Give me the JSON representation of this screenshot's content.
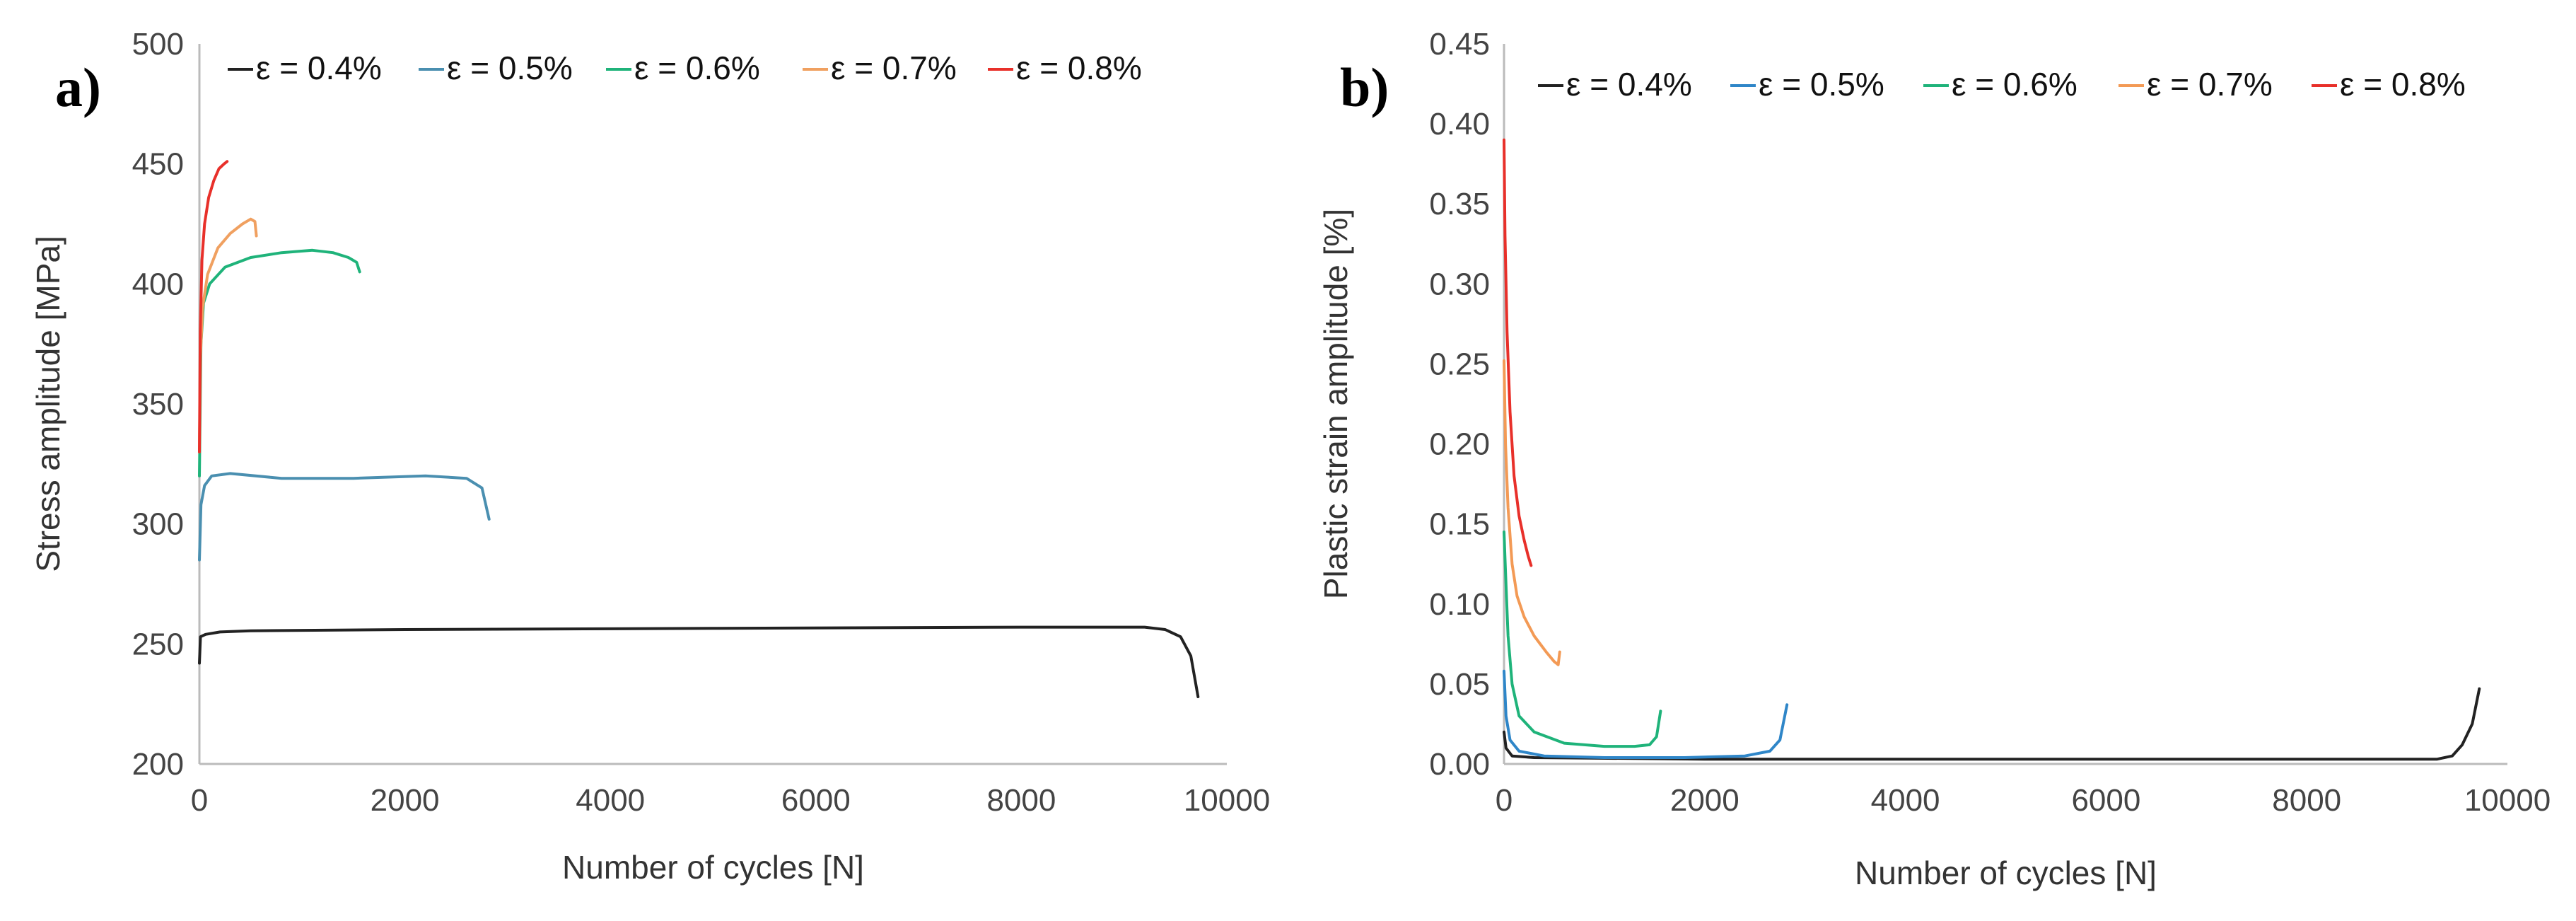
{
  "chart_data": [
    {
      "panel": "a)",
      "type": "line",
      "title": "",
      "xlabel": "Number of cycles [N]",
      "ylabel": "Stress amplitude [MPa]",
      "xlim": [
        0,
        10000
      ],
      "ylim": [
        200,
        500
      ],
      "xticks": [
        0,
        2000,
        4000,
        6000,
        8000,
        10000
      ],
      "yticks": [
        200,
        250,
        300,
        350,
        400,
        450,
        500
      ],
      "legend_position": "top",
      "series": [
        {
          "name": "ε = 0.4%",
          "color": "#222222",
          "points": [
            [
              0,
              242
            ],
            [
              10,
              253
            ],
            [
              60,
              254
            ],
            [
              200,
              255
            ],
            [
              500,
              255.5
            ],
            [
              2000,
              256
            ],
            [
              5000,
              256.5
            ],
            [
              8000,
              257
            ],
            [
              9200,
              257
            ],
            [
              9400,
              256
            ],
            [
              9550,
              253
            ],
            [
              9650,
              245
            ],
            [
              9720,
              228
            ]
          ]
        },
        {
          "name": "ε = 0.5%",
          "color": "#4a8fb0",
          "points": [
            [
              0,
              285
            ],
            [
              15,
              308
            ],
            [
              50,
              316
            ],
            [
              120,
              320
            ],
            [
              300,
              321
            ],
            [
              800,
              319
            ],
            [
              1500,
              319
            ],
            [
              2200,
              320
            ],
            [
              2600,
              319
            ],
            [
              2750,
              315
            ],
            [
              2820,
              302
            ]
          ]
        },
        {
          "name": "ε = 0.6%",
          "color": "#1fb37a",
          "points": [
            [
              0,
              320
            ],
            [
              15,
              375
            ],
            [
              40,
              392
            ],
            [
              100,
              400
            ],
            [
              250,
              407
            ],
            [
              500,
              411
            ],
            [
              800,
              413
            ],
            [
              1100,
              414
            ],
            [
              1300,
              413
            ],
            [
              1450,
              411
            ],
            [
              1530,
              409
            ],
            [
              1560,
              405
            ]
          ]
        },
        {
          "name": "ε = 0.7%",
          "color": "#f0a060",
          "points": [
            [
              0,
              330
            ],
            [
              10,
              370
            ],
            [
              30,
              390
            ],
            [
              80,
              404
            ],
            [
              180,
              415
            ],
            [
              300,
              421
            ],
            [
              420,
              425
            ],
            [
              500,
              427
            ],
            [
              540,
              426
            ],
            [
              555,
              420
            ]
          ]
        },
        {
          "name": "ε = 0.8%",
          "color": "#e8302a",
          "points": [
            [
              0,
              330
            ],
            [
              8,
              380
            ],
            [
              25,
              410
            ],
            [
              50,
              425
            ],
            [
              90,
              436
            ],
            [
              140,
              443
            ],
            [
              190,
              448
            ],
            [
              240,
              450
            ],
            [
              270,
              451
            ]
          ]
        }
      ]
    },
    {
      "panel": "b)",
      "type": "line",
      "title": "",
      "xlabel": "Number of cycles [N]",
      "ylabel": "Plastic strain amplitude [%]",
      "xlim": [
        0,
        10000
      ],
      "ylim": [
        0,
        0.45
      ],
      "xticks": [
        0,
        2000,
        4000,
        6000,
        8000,
        10000
      ],
      "yticks": [
        0.0,
        0.05,
        0.1,
        0.15,
        0.2,
        0.25,
        0.3,
        0.35,
        0.4,
        0.45
      ],
      "legend_position": "top",
      "series": [
        {
          "name": "ε = 0.4%",
          "color": "#222222",
          "points": [
            [
              0,
              0.02
            ],
            [
              20,
              0.01
            ],
            [
              80,
              0.005
            ],
            [
              300,
              0.004
            ],
            [
              2000,
              0.003
            ],
            [
              5000,
              0.003
            ],
            [
              8000,
              0.003
            ],
            [
              9300,
              0.003
            ],
            [
              9450,
              0.005
            ],
            [
              9550,
              0.012
            ],
            [
              9650,
              0.025
            ],
            [
              9720,
              0.047
            ]
          ]
        },
        {
          "name": "ε = 0.5%",
          "color": "#2f86c8",
          "points": [
            [
              0,
              0.058
            ],
            [
              20,
              0.03
            ],
            [
              60,
              0.015
            ],
            [
              150,
              0.008
            ],
            [
              400,
              0.005
            ],
            [
              1000,
              0.004
            ],
            [
              1800,
              0.004
            ],
            [
              2400,
              0.005
            ],
            [
              2650,
              0.008
            ],
            [
              2750,
              0.015
            ],
            [
              2820,
              0.037
            ]
          ]
        },
        {
          "name": "ε = 0.6%",
          "color": "#1fb37a",
          "points": [
            [
              0,
              0.145
            ],
            [
              15,
              0.12
            ],
            [
              40,
              0.08
            ],
            [
              80,
              0.05
            ],
            [
              150,
              0.03
            ],
            [
              300,
              0.02
            ],
            [
              600,
              0.013
            ],
            [
              1000,
              0.011
            ],
            [
              1300,
              0.011
            ],
            [
              1450,
              0.012
            ],
            [
              1520,
              0.017
            ],
            [
              1560,
              0.033
            ]
          ]
        },
        {
          "name": "ε = 0.7%",
          "color": "#f39a55",
          "points": [
            [
              0,
              0.252
            ],
            [
              15,
              0.2
            ],
            [
              40,
              0.16
            ],
            [
              80,
              0.125
            ],
            [
              130,
              0.105
            ],
            [
              200,
              0.092
            ],
            [
              300,
              0.08
            ],
            [
              420,
              0.07
            ],
            [
              500,
              0.064
            ],
            [
              540,
              0.062
            ],
            [
              555,
              0.07
            ]
          ]
        },
        {
          "name": "ε = 0.8%",
          "color": "#e8302a",
          "points": [
            [
              0,
              0.39
            ],
            [
              10,
              0.33
            ],
            [
              30,
              0.27
            ],
            [
              60,
              0.22
            ],
            [
              100,
              0.18
            ],
            [
              150,
              0.155
            ],
            [
              200,
              0.14
            ],
            [
              240,
              0.13
            ],
            [
              270,
              0.124
            ]
          ]
        }
      ]
    }
  ]
}
